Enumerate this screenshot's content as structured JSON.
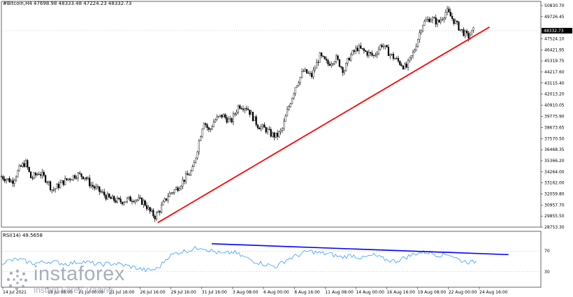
{
  "header": {
    "symbol": "#Bitcoin,H4",
    "ohlc": "47698.98 48333.48 47224.23 48332.73"
  },
  "rsi_header": "RSI(14) 49.5658",
  "watermark": {
    "brand": "instaforex",
    "tagline": "Instant Forex Trading"
  },
  "chart_data": {
    "type": "candlestick",
    "symbol": "#Bitcoin",
    "timeframe": "H4",
    "y_ticks": [
      "50830.70",
      "49726.45",
      "47524.10",
      "46421.95",
      "45319.75",
      "44217.60",
      "43115.40",
      "42013.20",
      "40910.05",
      "39775.90",
      "38673.65",
      "37570.50",
      "36468.35",
      "35366.20",
      "34264.00",
      "33162.00",
      "32059.80",
      "30957.70",
      "29855.50",
      "28753.30"
    ],
    "current_price_label": "48332.73",
    "x_ticks": [
      "14 Jul 2021",
      "18 Jul 08:00",
      "21 Jul 00:00",
      "21 Jul 16:00",
      "26 Jul 16:00",
      "29 Jul 16:00",
      "31 Jul 16:00",
      "3 Aug 08:00",
      "6 Aug 00:00",
      "8 Aug 16:00",
      "11 Aug 08:00",
      "14 Aug 00:00",
      "16 Aug 16:00",
      "19 Aug 08:00",
      "22 Aug 00:00",
      "24 Aug 16:00"
    ],
    "ylim": [
      28753.3,
      50830.7
    ],
    "price_path": [
      {
        "x": 0,
        "y": 33800
      },
      {
        "x": 0.02,
        "y": 33300
      },
      {
        "x": 0.035,
        "y": 34700
      },
      {
        "x": 0.045,
        "y": 35200
      },
      {
        "x": 0.055,
        "y": 33600
      },
      {
        "x": 0.07,
        "y": 34200
      },
      {
        "x": 0.085,
        "y": 33400
      },
      {
        "x": 0.095,
        "y": 32400
      },
      {
        "x": 0.11,
        "y": 33100
      },
      {
        "x": 0.125,
        "y": 33600
      },
      {
        "x": 0.14,
        "y": 34000
      },
      {
        "x": 0.155,
        "y": 33800
      },
      {
        "x": 0.165,
        "y": 33000
      },
      {
        "x": 0.18,
        "y": 32400
      },
      {
        "x": 0.2,
        "y": 31600
      },
      {
        "x": 0.22,
        "y": 31300
      },
      {
        "x": 0.245,
        "y": 31600
      },
      {
        "x": 0.265,
        "y": 31200
      },
      {
        "x": 0.275,
        "y": 30300
      },
      {
        "x": 0.285,
        "y": 29800
      },
      {
        "x": 0.295,
        "y": 30600
      },
      {
        "x": 0.31,
        "y": 32000
      },
      {
        "x": 0.325,
        "y": 32600
      },
      {
        "x": 0.34,
        "y": 33600
      },
      {
        "x": 0.355,
        "y": 34500
      },
      {
        "x": 0.365,
        "y": 37000
      },
      {
        "x": 0.375,
        "y": 39400
      },
      {
        "x": 0.385,
        "y": 38300
      },
      {
        "x": 0.395,
        "y": 39400
      },
      {
        "x": 0.41,
        "y": 39900
      },
      {
        "x": 0.425,
        "y": 39200
      },
      {
        "x": 0.44,
        "y": 40900
      },
      {
        "x": 0.455,
        "y": 40700
      },
      {
        "x": 0.465,
        "y": 39800
      },
      {
        "x": 0.475,
        "y": 38900
      },
      {
        "x": 0.49,
        "y": 38500
      },
      {
        "x": 0.5,
        "y": 38000
      },
      {
        "x": 0.51,
        "y": 37800
      },
      {
        "x": 0.52,
        "y": 38400
      },
      {
        "x": 0.53,
        "y": 40300
      },
      {
        "x": 0.545,
        "y": 42800
      },
      {
        "x": 0.56,
        "y": 44300
      },
      {
        "x": 0.575,
        "y": 43800
      },
      {
        "x": 0.59,
        "y": 45800
      },
      {
        "x": 0.605,
        "y": 45000
      },
      {
        "x": 0.62,
        "y": 45600
      },
      {
        "x": 0.635,
        "y": 44300
      },
      {
        "x": 0.645,
        "y": 45700
      },
      {
        "x": 0.66,
        "y": 46600
      },
      {
        "x": 0.675,
        "y": 46200
      },
      {
        "x": 0.69,
        "y": 45800
      },
      {
        "x": 0.705,
        "y": 47000
      },
      {
        "x": 0.72,
        "y": 46000
      },
      {
        "x": 0.735,
        "y": 45300
      },
      {
        "x": 0.75,
        "y": 44600
      },
      {
        "x": 0.765,
        "y": 46300
      },
      {
        "x": 0.78,
        "y": 49000
      },
      {
        "x": 0.795,
        "y": 49600
      },
      {
        "x": 0.81,
        "y": 49100
      },
      {
        "x": 0.825,
        "y": 50300
      },
      {
        "x": 0.835,
        "y": 49600
      },
      {
        "x": 0.85,
        "y": 48500
      },
      {
        "x": 0.865,
        "y": 47700
      },
      {
        "x": 0.875,
        "y": 48330
      }
    ],
    "trendline_price": {
      "color": "#ff0000",
      "from": {
        "x": 0.29,
        "y": 29200
      },
      "to": {
        "x": 0.905,
        "y": 48700
      }
    },
    "rsi": {
      "period": 14,
      "current": 49.5658,
      "y_ticks": [
        "70",
        "30"
      ],
      "levels": [
        70,
        30
      ],
      "ylim": [
        0,
        100
      ],
      "path": [
        {
          "x": 0,
          "y": 48
        },
        {
          "x": 0.03,
          "y": 54
        },
        {
          "x": 0.06,
          "y": 46
        },
        {
          "x": 0.09,
          "y": 50
        },
        {
          "x": 0.12,
          "y": 45
        },
        {
          "x": 0.15,
          "y": 50
        },
        {
          "x": 0.18,
          "y": 44
        },
        {
          "x": 0.21,
          "y": 46
        },
        {
          "x": 0.24,
          "y": 40
        },
        {
          "x": 0.27,
          "y": 32
        },
        {
          "x": 0.29,
          "y": 36
        },
        {
          "x": 0.31,
          "y": 60
        },
        {
          "x": 0.33,
          "y": 68
        },
        {
          "x": 0.35,
          "y": 72
        },
        {
          "x": 0.37,
          "y": 78
        },
        {
          "x": 0.39,
          "y": 70
        },
        {
          "x": 0.41,
          "y": 64
        },
        {
          "x": 0.43,
          "y": 68
        },
        {
          "x": 0.45,
          "y": 58
        },
        {
          "x": 0.47,
          "y": 50
        },
        {
          "x": 0.49,
          "y": 44
        },
        {
          "x": 0.51,
          "y": 40
        },
        {
          "x": 0.53,
          "y": 54
        },
        {
          "x": 0.55,
          "y": 62
        },
        {
          "x": 0.57,
          "y": 70
        },
        {
          "x": 0.59,
          "y": 66
        },
        {
          "x": 0.61,
          "y": 64
        },
        {
          "x": 0.63,
          "y": 58
        },
        {
          "x": 0.65,
          "y": 62
        },
        {
          "x": 0.67,
          "y": 56
        },
        {
          "x": 0.69,
          "y": 62
        },
        {
          "x": 0.71,
          "y": 54
        },
        {
          "x": 0.73,
          "y": 50
        },
        {
          "x": 0.75,
          "y": 58
        },
        {
          "x": 0.77,
          "y": 66
        },
        {
          "x": 0.79,
          "y": 68
        },
        {
          "x": 0.81,
          "y": 62
        },
        {
          "x": 0.83,
          "y": 64
        },
        {
          "x": 0.85,
          "y": 52
        },
        {
          "x": 0.87,
          "y": 48
        },
        {
          "x": 0.88,
          "y": 50
        }
      ],
      "trendline": {
        "color": "#0000ff",
        "from": {
          "x": 0.39,
          "y": 84
        },
        "to": {
          "x": 0.94,
          "y": 63
        }
      }
    }
  }
}
